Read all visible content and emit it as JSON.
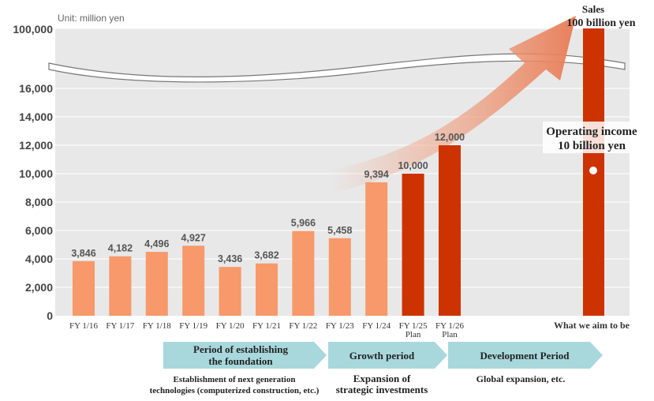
{
  "chart_data": {
    "type": "bar",
    "unit_label": "Unit: million yen",
    "y_ticks": [
      "0",
      "2,000",
      "4,000",
      "6,000",
      "8,000",
      "10,000",
      "12,000",
      "14,000",
      "16,000",
      "100,000"
    ],
    "ylim": [
      0,
      16000
    ],
    "y_break": [
      16000,
      100000
    ],
    "grid": true,
    "categories": [
      "FY 1/16",
      "FY 1/17",
      "FY 1/18",
      "FY 1/19",
      "FY 1/20",
      "FY 1/21",
      "FY 1/22",
      "FY 1/23",
      "FY 1/24",
      "FY 1/25",
      "FY 1/26"
    ],
    "category_sublabels": [
      "",
      "",
      "",
      "",
      "",
      "",
      "",
      "",
      "",
      "Plan",
      "Plan"
    ],
    "values": [
      3846,
      4182,
      4496,
      4927,
      3436,
      3682,
      5966,
      5458,
      9394,
      10000,
      12000
    ],
    "value_labels": [
      "3,846",
      "4,182",
      "4,496",
      "4,927",
      "3,436",
      "3,682",
      "5,966",
      "5,458",
      "9,394",
      "10,000",
      "12,000"
    ],
    "bar_kinds": [
      "actual",
      "actual",
      "actual",
      "actual",
      "actual",
      "actual",
      "actual",
      "actual",
      "actual",
      "plan",
      "plan"
    ],
    "target": {
      "category": "What we aim to be",
      "sales_label": "Sales",
      "sales_value_label": "100 billion yen",
      "sales_value": 100000,
      "operating_income_label": "Operating income",
      "operating_income_value_label": "10 billion yen",
      "operating_income_value": 10000
    },
    "colors": {
      "actual": "#f7996a",
      "plan": "#cc3300",
      "plot_background": "#e8e8e8",
      "gridline": "#ffffff",
      "phase": "#a8d8dc",
      "arrow": "#f0a080",
      "axis_text": "#444444",
      "value_text": "#555555"
    },
    "phases": [
      {
        "label": "Period of establishing the foundation",
        "description": "Establishment of next generation technologies (computerized construction, etc.)"
      },
      {
        "label": "Growth period",
        "description": "Expansion of strategic investments"
      },
      {
        "label": "Development Period",
        "description": "Global expansion, etc."
      }
    ]
  }
}
